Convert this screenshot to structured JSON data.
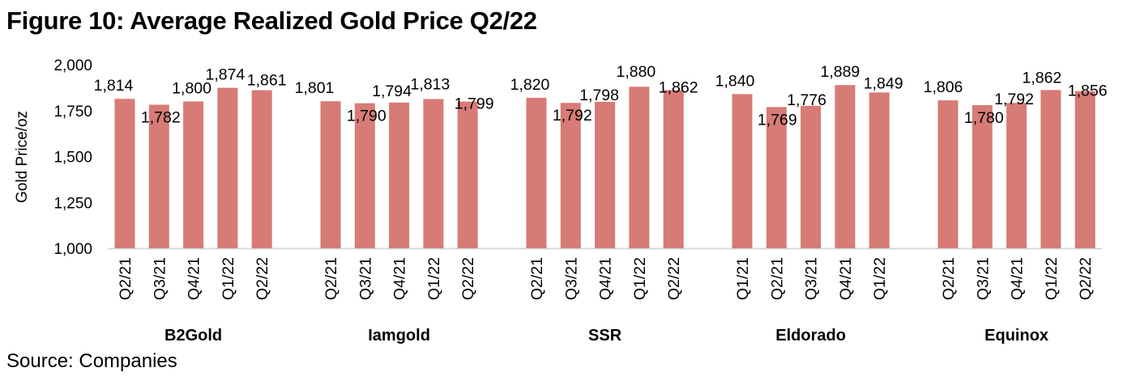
{
  "title": "Figure 10: Average Realized Gold Price Q2/22",
  "source": "Source: Companies",
  "chart_data": {
    "type": "bar",
    "title": "Figure 10: Average Realized Gold Price Q2/22",
    "xlabel": "",
    "ylabel": "Gold Price/oz",
    "ylim": [
      1000,
      2000
    ],
    "yticks": [
      1000,
      1250,
      1500,
      1750,
      2000
    ],
    "ytick_labels": [
      "1,000",
      "1,250",
      "1,500",
      "1,750",
      "2,000"
    ],
    "grid": false,
    "legend": "none",
    "bar_color": "#d77b76",
    "groups": [
      {
        "name": "B2Gold",
        "categories": [
          "Q2/21",
          "Q3/21",
          "Q4/21",
          "Q1/22",
          "Q2/22"
        ],
        "values": [
          1814,
          1782,
          1800,
          1874,
          1861
        ],
        "labels": [
          "1,814",
          "1,782",
          "1,800",
          "1,874",
          "1,861"
        ]
      },
      {
        "name": "Iamgold",
        "categories": [
          "Q2/21",
          "Q3/21",
          "Q4/21",
          "Q1/22",
          "Q2/22"
        ],
        "values": [
          1801,
          1790,
          1794,
          1813,
          1799
        ],
        "labels": [
          "1,801",
          "1,790",
          "1,794",
          "1,813",
          "1,799"
        ]
      },
      {
        "name": "SSR",
        "categories": [
          "Q2/21",
          "Q3/21",
          "Q4/21",
          "Q1/22",
          "Q2/22"
        ],
        "values": [
          1820,
          1792,
          1798,
          1880,
          1862
        ],
        "labels": [
          "1,820",
          "1,792",
          "1,798",
          "1,880",
          "1,862"
        ]
      },
      {
        "name": "Eldorado",
        "categories": [
          "Q1/21",
          "Q2/21",
          "Q3/21",
          "Q4/21",
          "Q1/22"
        ],
        "values": [
          1840,
          1769,
          1776,
          1889,
          1849
        ],
        "labels": [
          "1,840",
          "1,769",
          "1,776",
          "1,889",
          "1,849"
        ]
      },
      {
        "name": "Equinox",
        "categories": [
          "Q2/21",
          "Q3/21",
          "Q4/21",
          "Q1/22",
          "Q2/22"
        ],
        "values": [
          1806,
          1780,
          1792,
          1862,
          1856
        ],
        "labels": [
          "1,806",
          "1,780",
          "1,792",
          "1,862",
          "1,856"
        ]
      }
    ]
  }
}
